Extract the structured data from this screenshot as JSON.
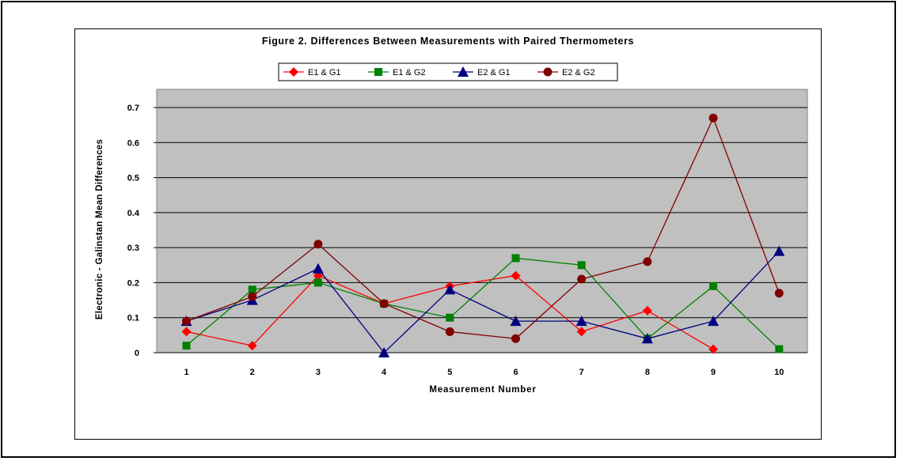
{
  "chart_data": {
    "type": "line",
    "title": "Figure 2. Differences Between Measurements with Paired Thermometers",
    "xlabel": "Measurement Number",
    "ylabel": "Electronic - Galinstan Mean Differences",
    "categories": [
      "1",
      "2",
      "3",
      "4",
      "5",
      "6",
      "7",
      "8",
      "9",
      "10"
    ],
    "ylim": [
      0,
      0.7
    ],
    "yticks": [
      "0",
      "0.1",
      "0.2",
      "0.3",
      "0.4",
      "0.5",
      "0.6",
      "0.7"
    ],
    "grid": true,
    "legend_position": "top",
    "plot_background": "#c0c0c0",
    "series": [
      {
        "name": "E1 & G1",
        "color": "#ff0000",
        "marker": "diamond",
        "values": [
          0.06,
          0.02,
          0.22,
          0.14,
          0.19,
          0.22,
          0.06,
          0.12,
          0.01,
          null
        ]
      },
      {
        "name": "E1 & G2",
        "color": "#008000",
        "marker": "square",
        "values": [
          0.02,
          0.18,
          0.2,
          0.14,
          0.1,
          0.27,
          0.25,
          0.04,
          0.19,
          0.01
        ]
      },
      {
        "name": "E2 & G1",
        "color": "#000080",
        "marker": "triangle",
        "values": [
          0.09,
          0.15,
          0.24,
          0.0,
          0.18,
          0.09,
          0.09,
          0.04,
          0.09,
          0.29
        ]
      },
      {
        "name": "E2 & G2",
        "color": "#800000",
        "marker": "circle",
        "values": [
          0.09,
          0.16,
          0.31,
          0.14,
          0.06,
          0.04,
          0.21,
          0.26,
          0.67,
          0.17
        ]
      }
    ]
  }
}
